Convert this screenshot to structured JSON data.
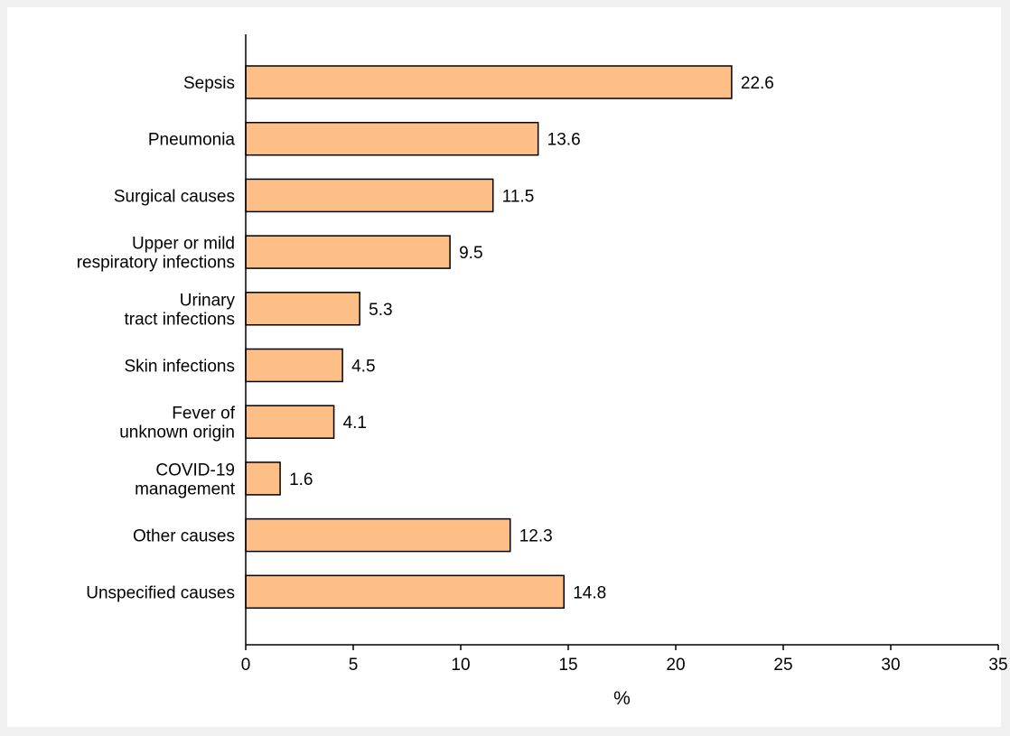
{
  "chart_data": {
    "type": "bar",
    "orientation": "horizontal",
    "categories": [
      "Sepsis",
      "Pneumonia",
      "Surgical causes",
      "Upper or mild\nrespiratory infections",
      "Urinary\ntract infections",
      "Skin infections",
      "Fever of\nunknown origin",
      "COVID-19\nmanagement",
      "Other causes",
      "Unspecified causes"
    ],
    "values": [
      22.6,
      13.6,
      11.5,
      9.5,
      5.3,
      4.5,
      4.1,
      1.6,
      12.3,
      14.8
    ],
    "value_labels": [
      "22.6",
      "13.6",
      "11.5",
      "9.5",
      "5.3",
      "4.5",
      "4.1",
      "1.6",
      "12.3",
      "14.8"
    ],
    "title": "",
    "xlabel": "%",
    "ylabel": "",
    "xlim": [
      0,
      35
    ],
    "xticks": [
      0,
      5,
      10,
      15,
      20,
      25,
      30,
      35
    ],
    "xtick_labels": [
      "0",
      "5",
      "10",
      "15",
      "20",
      "25",
      "30",
      "35"
    ],
    "grid": false,
    "legend": "none",
    "colors": {
      "bar_fill": "#fdbf85",
      "bar_stroke": "#000000",
      "background": "#f0f0f0",
      "plot_background": "#ffffff"
    }
  }
}
